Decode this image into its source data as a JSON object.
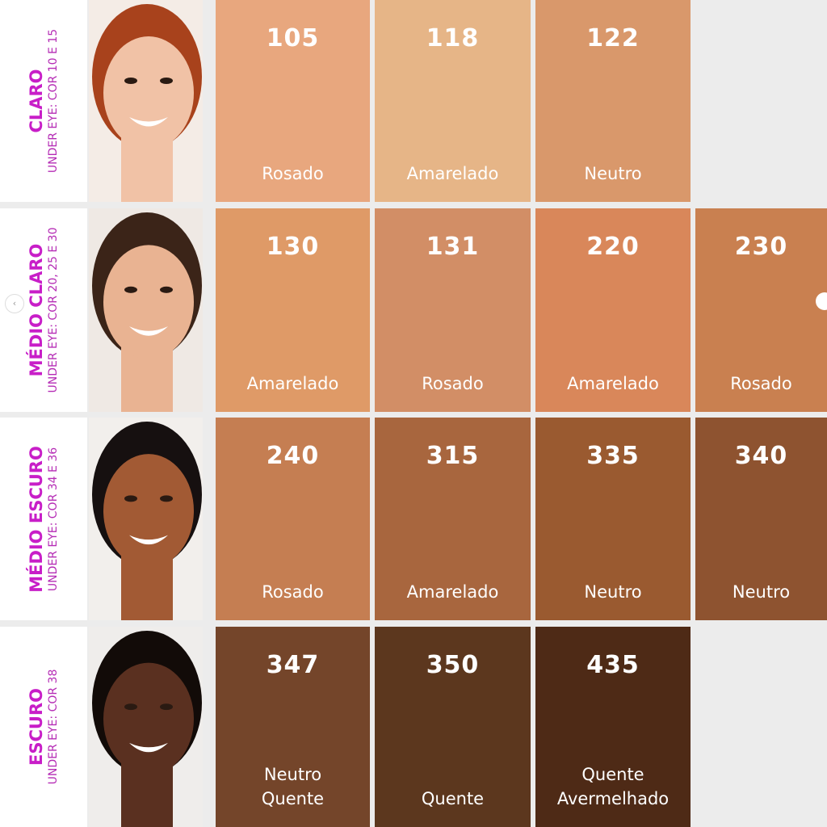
{
  "rows": [
    {
      "title": "CLARO",
      "sub": "UNDER EYE: COR 10 E 15",
      "skin": "#f1c2a6",
      "hair": "#a8421c",
      "bg": "#f4ece6",
      "swatches": [
        {
          "num": "105",
          "tone": "Rosado",
          "color": "#E8A77E"
        },
        {
          "num": "118",
          "tone": "Amarelado",
          "color": "#E6B587"
        },
        {
          "num": "122",
          "tone": "Neutro",
          "color": "#D9986B"
        }
      ]
    },
    {
      "title": "MÉDIO CLARO",
      "sub": "UNDER EYE: COR 20, 25 E 30",
      "skin": "#e9b392",
      "hair": "#3b2418",
      "bg": "#efe9e4",
      "swatches": [
        {
          "num": "130",
          "tone": "Amarelado",
          "color": "#DF9A67"
        },
        {
          "num": "131",
          "tone": "Rosado",
          "color": "#D28E66"
        },
        {
          "num": "220",
          "tone": "Amarelado",
          "color": "#D9875A"
        },
        {
          "num": "230",
          "tone": "Rosado",
          "color": "#C98050"
        }
      ]
    },
    {
      "title": "MÉDIO ESCURO",
      "sub": "UNDER EYE: COR 34 E 36",
      "skin": "#a25a34",
      "hair": "#161010",
      "bg": "#f2efec",
      "swatches": [
        {
          "num": "240",
          "tone": "Rosado",
          "color": "#C57E52"
        },
        {
          "num": "315",
          "tone": "Amarelado",
          "color": "#A8663E"
        },
        {
          "num": "335",
          "tone": "Neutro",
          "color": "#9A5A30"
        },
        {
          "num": "340",
          "tone": "Neutro",
          "color": "#8E5330"
        }
      ]
    },
    {
      "title": "ESCURO",
      "sub": "UNDER EYE: COR 38",
      "skin": "#5a3020",
      "hair": "#120b08",
      "bg": "#efedeb",
      "swatches": [
        {
          "num": "347",
          "tone": "Neutro\nQuente",
          "color": "#74452A"
        },
        {
          "num": "350",
          "tone": "Quente",
          "color": "#5C371E"
        },
        {
          "num": "435",
          "tone": "Quente\nAvermelhado",
          "color": "#4E2A16"
        }
      ]
    }
  ],
  "nav": {
    "prev_icon": "chevron-left-icon",
    "prev_glyph": "‹"
  }
}
